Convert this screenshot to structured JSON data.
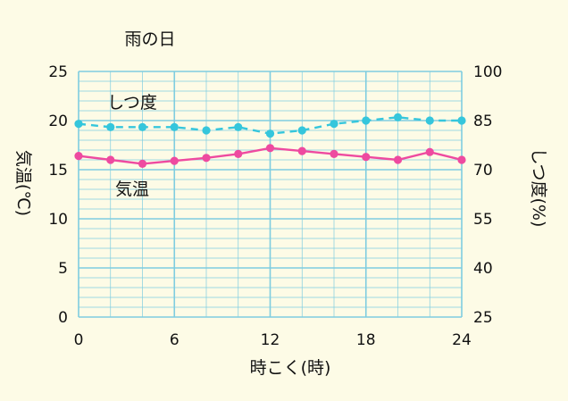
{
  "chart_data": {
    "type": "line",
    "title": "雨の日",
    "xlabel": "時こく(時)",
    "ylabel_left": "気温(℃)",
    "ylabel_right": "しつ度(%)",
    "xlim": [
      0,
      24
    ],
    "ylim_left": [
      0,
      25
    ],
    "ylim_right": [
      25,
      100
    ],
    "x_ticks": [
      "0",
      "6",
      "12",
      "18",
      "24"
    ],
    "y_ticks_left": [
      "0",
      "5",
      "10",
      "15",
      "20",
      "25"
    ],
    "y_ticks_right": [
      "25",
      "40",
      "55",
      "70",
      "85",
      "100"
    ],
    "grid": true,
    "colors": {
      "temperature": "#ee4aa0",
      "humidity": "#35c6dc",
      "grid": "#7fcde0",
      "background": "#fdfbe6"
    },
    "series": [
      {
        "name": "気温",
        "axis": "left",
        "style": "solid",
        "x": [
          0,
          2,
          4,
          6,
          8,
          10,
          12,
          14,
          16,
          18,
          20,
          22,
          24
        ],
        "y": [
          16.4,
          16.0,
          15.6,
          15.9,
          16.2,
          16.6,
          17.2,
          16.9,
          16.6,
          16.3,
          16.0,
          16.8,
          16.0
        ]
      },
      {
        "name": "しつ度",
        "axis": "right",
        "style": "dashed",
        "x": [
          0,
          2,
          4,
          6,
          8,
          10,
          12,
          14,
          16,
          18,
          20,
          22,
          24
        ],
        "y": [
          84,
          83,
          83,
          83,
          82,
          83,
          81,
          82,
          84,
          85,
          86,
          85,
          85
        ]
      }
    ]
  }
}
